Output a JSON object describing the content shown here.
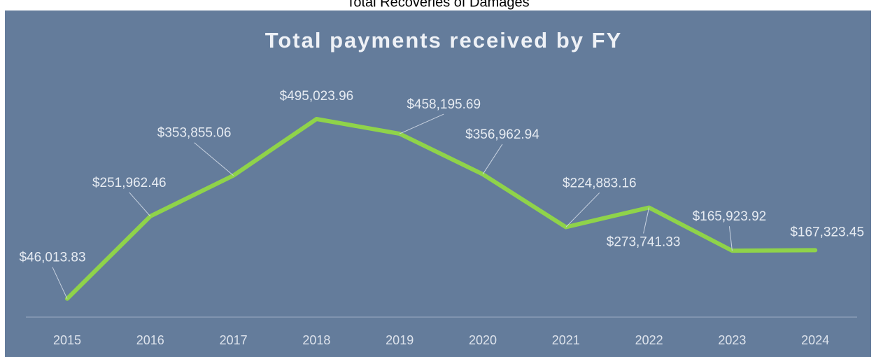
{
  "header": "Total Recoveries of Damages",
  "chart_data": {
    "type": "line",
    "title": "Total payments received by FY",
    "categories": [
      "2015",
      "2016",
      "2017",
      "2018",
      "2019",
      "2020",
      "2021",
      "2022",
      "2023",
      "2024"
    ],
    "series": [
      {
        "name": null,
        "color": "#8fd34a",
        "values": [
          46013.83,
          251962.46,
          353855.06,
          495023.96,
          458195.69,
          356962.94,
          224883.16,
          273741.33,
          165923.92,
          167323.45
        ],
        "value_labels": [
          "$46,013.83",
          "$251,962.46",
          "$353,855.06",
          "$495,023.96",
          "$458,195.69",
          "$356,962.94",
          "$224,883.16",
          "$273,741.33",
          "$165,923.92",
          "$167,323.45"
        ]
      }
    ],
    "ylim": [
      0,
      600000
    ]
  }
}
